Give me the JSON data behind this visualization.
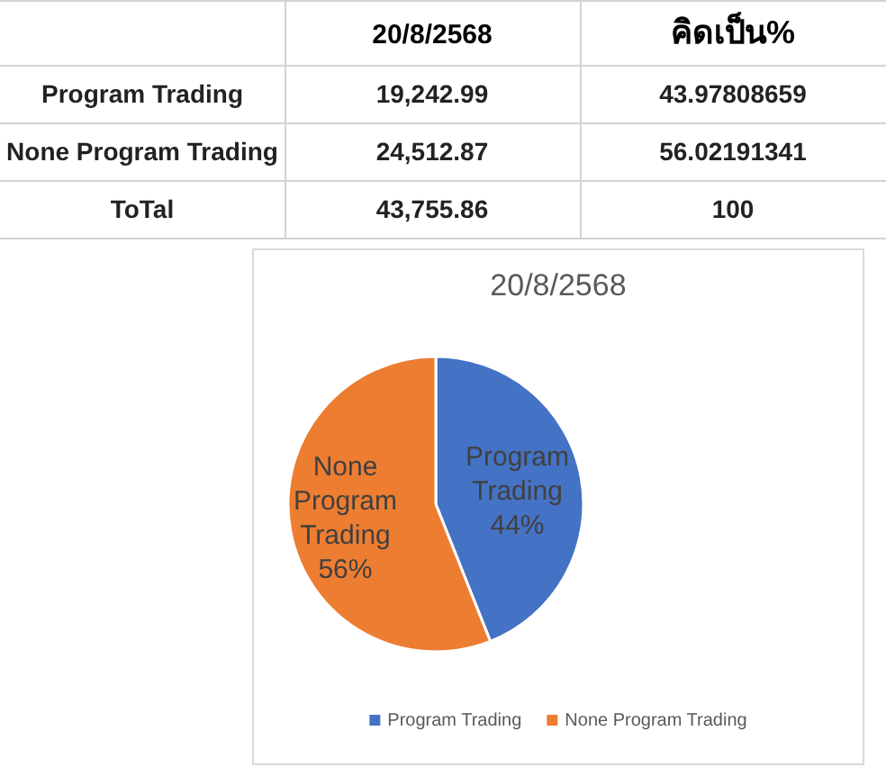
{
  "chart_data": [
    {
      "type": "other",
      "annotations": [
        "20/8/2568",
        "คิดเป็น%",
        "Program Trading",
        "19,242.99",
        "43.97808659",
        "None Program Trading",
        "24,512.87",
        "56.02191341",
        "ToTal",
        "43,755.86",
        "100"
      ]
    },
    {
      "type": "pie",
      "title": "20/8/2568",
      "categories": [
        "Program Trading",
        "None Program Trading"
      ],
      "values": [
        43.97808659,
        56.02191341
      ],
      "colors": [
        "#4472c4",
        "#ed7d31"
      ],
      "value_labels": [
        "44%",
        "56%"
      ],
      "legend": "bottom"
    }
  ]
}
